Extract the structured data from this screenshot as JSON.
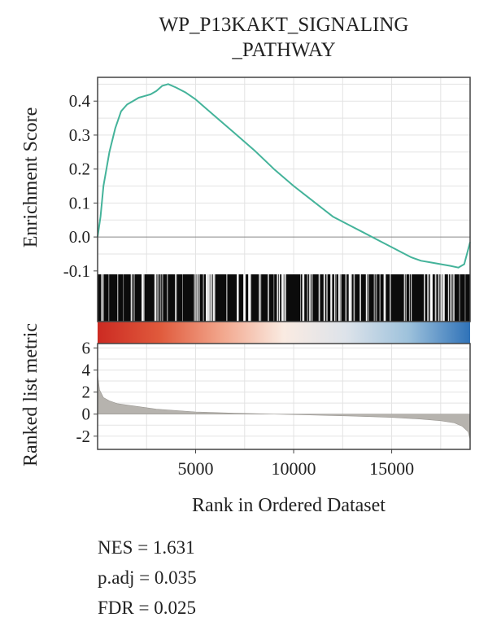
{
  "title_line1": "WP_P13KAKT_SIGNALING",
  "title_line2": "_PATHWAY",
  "stats": {
    "nes": "NES = 1.631",
    "padj": "p.adj = 0.035",
    "fdr": "FDR = 0.025"
  },
  "colors": {
    "es_line": "#44b39a",
    "ranked_fill": "#b6b3ae",
    "grid": "#e3e3e3",
    "zero_line": "#888888",
    "frame": "#444444",
    "gradient": [
      "#cc2a22",
      "#e05a3c",
      "#f2a68c",
      "#faebe2",
      "#dde3ea",
      "#9ec2dc",
      "#2f72b8"
    ]
  },
  "chart_data": [
    {
      "type": "line",
      "ylabel": "Enrichment Score",
      "ylim": [
        -0.11,
        0.47
      ],
      "xlim": [
        0,
        19000
      ],
      "yticks": [
        "0.4",
        "0.3",
        "0.2",
        "0.1",
        "0.0",
        "-0.1"
      ],
      "ytick_values": [
        0.4,
        0.3,
        0.2,
        0.1,
        0.0,
        -0.1
      ],
      "grid": true,
      "x": [
        0,
        150,
        300,
        600,
        900,
        1200,
        1500,
        1800,
        2100,
        2400,
        2700,
        3000,
        3300,
        3600,
        4000,
        4500,
        5000,
        5500,
        6000,
        7000,
        8000,
        9000,
        10000,
        11000,
        12000,
        13000,
        13500,
        14000,
        14500,
        15000,
        15500,
        16000,
        16500,
        17000,
        17500,
        18000,
        18400,
        18700,
        19000
      ],
      "values": [
        0.0,
        0.06,
        0.15,
        0.25,
        0.32,
        0.37,
        0.39,
        0.4,
        0.41,
        0.415,
        0.42,
        0.43,
        0.445,
        0.45,
        0.44,
        0.425,
        0.405,
        0.38,
        0.355,
        0.305,
        0.255,
        0.2,
        0.15,
        0.105,
        0.06,
        0.03,
        0.015,
        0.0,
        -0.015,
        -0.03,
        -0.045,
        -0.06,
        -0.07,
        -0.075,
        -0.08,
        -0.085,
        -0.09,
        -0.08,
        -0.015
      ]
    },
    {
      "type": "area",
      "ylabel": "Ranked list metric",
      "xlabel": "Rank in Ordered Dataset",
      "ylim": [
        -3.2,
        6.4
      ],
      "xlim": [
        0,
        19000
      ],
      "yticks": [
        "6",
        "4",
        "2",
        "0",
        "-2"
      ],
      "ytick_values": [
        6,
        4,
        2,
        0,
        -2
      ],
      "xticks": [
        "5000",
        "10000",
        "15000"
      ],
      "xtick_values": [
        5000,
        10000,
        15000
      ],
      "grid": true,
      "x": [
        0,
        100,
        300,
        600,
        1000,
        2000,
        3000,
        5000,
        7000,
        9000,
        11000,
        13000,
        15000,
        16500,
        17500,
        18200,
        18600,
        18900,
        19000
      ],
      "values": [
        3.6,
        2.2,
        1.5,
        1.2,
        0.95,
        0.7,
        0.45,
        0.2,
        0.08,
        0.0,
        -0.08,
        -0.18,
        -0.3,
        -0.45,
        -0.6,
        -0.8,
        -1.1,
        -1.6,
        -2.3
      ]
    }
  ]
}
